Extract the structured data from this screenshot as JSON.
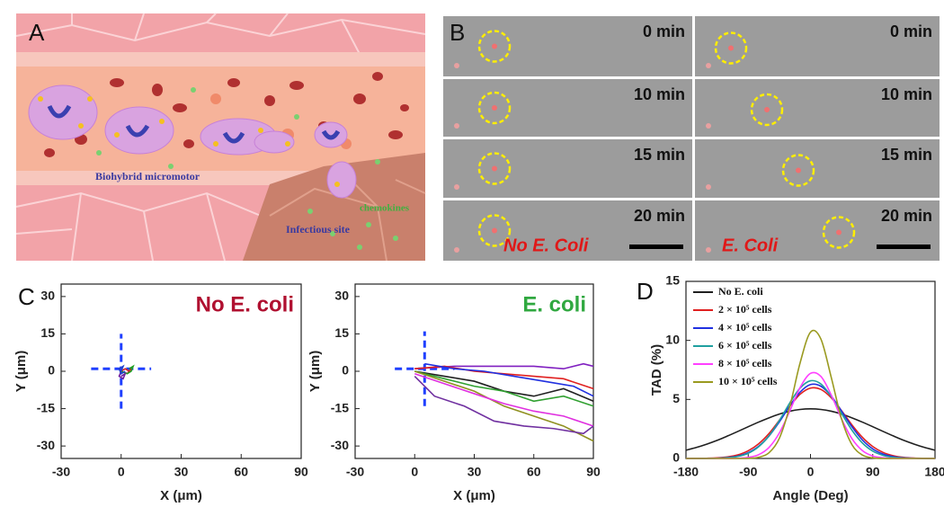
{
  "panel_labels": [
    "A",
    "B",
    "C",
    "D"
  ],
  "panel_a": {
    "labels": [
      "Biohybrid micromotor",
      "Infectious site",
      "chemokines"
    ]
  },
  "panel_b": {
    "times": [
      "0 min",
      "10 min",
      "15 min",
      "20 min"
    ],
    "conditions": [
      "No E. Coli",
      "E. Coli"
    ]
  },
  "chart_data": [
    {
      "type": "line",
      "title": "No E. coli",
      "title_color": "#b01030",
      "x_label": "X (μm)",
      "y_label": "Y (μm)",
      "xlim": [
        -30,
        90
      ],
      "xticks": [
        -30,
        0,
        30,
        60,
        90
      ],
      "ylim": [
        -35,
        35
      ],
      "yticks": [
        -30,
        -15,
        0,
        15,
        30
      ],
      "series": [
        {
          "color": "#2040ff",
          "dashed": true,
          "x": [
            -15,
            15
          ],
          "values": [
            1,
            1
          ]
        },
        {
          "color": "#2040ff",
          "dashed": true,
          "x": [
            0,
            0
          ],
          "values": [
            -15,
            15
          ]
        },
        {
          "color": "#d02020",
          "x": [
            0,
            2,
            4,
            5,
            3
          ],
          "values": [
            0,
            1,
            0,
            1,
            -1
          ]
        },
        {
          "color": "#20a020",
          "x": [
            0,
            3,
            5,
            6,
            4
          ],
          "values": [
            0,
            -1,
            0,
            2,
            1
          ]
        },
        {
          "color": "#7020a0",
          "x": [
            0,
            -1,
            1,
            2,
            0
          ],
          "values": [
            0,
            -2,
            -3,
            -1,
            -2
          ]
        },
        {
          "color": "#2040d0",
          "x": [
            0,
            1,
            -1,
            0,
            2
          ],
          "values": [
            0,
            2,
            1,
            -1,
            0
          ]
        }
      ]
    },
    {
      "type": "line",
      "title": "E. coli",
      "title_color": "#30a840",
      "x_label": "X (μm)",
      "y_label": "Y (μm)",
      "xlim": [
        -30,
        90
      ],
      "xticks": [
        -30,
        0,
        30,
        60,
        90
      ],
      "ylim": [
        -35,
        35
      ],
      "yticks": [
        -30,
        -15,
        0,
        15,
        30
      ],
      "series": [
        {
          "color": "#2040ff",
          "dashed": true,
          "x": [
            -10,
            20
          ],
          "values": [
            1,
            1
          ]
        },
        {
          "color": "#2040ff",
          "dashed": true,
          "x": [
            5,
            5
          ],
          "values": [
            -14,
            16
          ]
        },
        {
          "color": "#8020c0",
          "x": [
            0,
            20,
            40,
            60,
            75,
            85,
            90
          ],
          "values": [
            1,
            2,
            2,
            2,
            1,
            3,
            2
          ]
        },
        {
          "color": "#e02020",
          "x": [
            0,
            15,
            30,
            45,
            60,
            75,
            90
          ],
          "values": [
            1,
            2,
            0,
            -1,
            -2,
            -3,
            -7
          ]
        },
        {
          "color": "#2030e0",
          "x": [
            5,
            20,
            35,
            50,
            65,
            80,
            90
          ],
          "values": [
            3,
            1,
            0,
            -2,
            -4,
            -6,
            -10
          ]
        },
        {
          "color": "#202020",
          "x": [
            0,
            15,
            30,
            45,
            60,
            75,
            90
          ],
          "values": [
            0,
            -2,
            -4,
            -8,
            -10,
            -7,
            -12
          ]
        },
        {
          "color": "#30a030",
          "x": [
            0,
            15,
            30,
            45,
            60,
            75,
            90
          ],
          "values": [
            0,
            -3,
            -6,
            -8,
            -12,
            -10,
            -14
          ]
        },
        {
          "color": "#909020",
          "x": [
            0,
            15,
            30,
            45,
            60,
            75,
            90
          ],
          "values": [
            0,
            -4,
            -8,
            -14,
            -18,
            -22,
            -28
          ]
        },
        {
          "color": "#e030e0",
          "x": [
            0,
            15,
            30,
            45,
            60,
            75,
            90
          ],
          "values": [
            -1,
            -5,
            -9,
            -13,
            -16,
            -18,
            -22
          ]
        },
        {
          "color": "#7030a0",
          "x": [
            0,
            10,
            25,
            40,
            55,
            70,
            85,
            90
          ],
          "values": [
            -2,
            -10,
            -14,
            -20,
            -22,
            -23,
            -25,
            -22
          ]
        }
      ]
    },
    {
      "type": "line",
      "x_label": "Angle (Deg)",
      "y_label": "TAD (%)",
      "legend": "upper left",
      "xlim": [
        -180,
        180
      ],
      "xticks": [
        -180,
        -90,
        0,
        90,
        180
      ],
      "ylim": [
        0,
        15
      ],
      "yticks": [
        0,
        5,
        10,
        15
      ],
      "x": [
        -180,
        -165,
        -150,
        -135,
        -120,
        -105,
        -90,
        -75,
        -60,
        -45,
        -30,
        -15,
        0,
        15,
        30,
        45,
        60,
        75,
        90,
        105,
        120,
        135,
        150,
        165,
        180
      ],
      "series": [
        {
          "name": "No E. coli",
          "color": "#202020",
          "values": [
            0.7,
            0.93,
            1.21,
            1.53,
            1.9,
            2.29,
            2.69,
            3.08,
            3.44,
            3.76,
            4.0,
            4.15,
            4.2,
            4.15,
            4.0,
            3.76,
            3.44,
            3.08,
            2.69,
            2.29,
            1.9,
            1.53,
            1.21,
            0.93,
            0.7
          ]
        },
        {
          "name": "2 × 10⁵ cells",
          "color": "#e02020",
          "values": [
            0,
            0.01,
            0.02,
            0.05,
            0.13,
            0.3,
            0.65,
            1.24,
            2.11,
            3.24,
            4.42,
            5.44,
            5.96,
            5.85,
            5.14,
            4.04,
            2.84,
            1.79,
            1.01,
            0.51,
            0.23,
            0.09,
            0.03,
            0.01,
            0
          ]
        },
        {
          "name": "4 × 10⁵ cells",
          "color": "#2030e0",
          "values": [
            0,
            0,
            0.01,
            0.02,
            0.08,
            0.2,
            0.49,
            1.03,
            1.9,
            3.1,
            4.45,
            5.62,
            6.26,
            6.12,
            5.28,
            4.0,
            2.68,
            1.57,
            0.81,
            0.37,
            0.15,
            0.05,
            0.02,
            0,
            0
          ]
        },
        {
          "name": "6 × 10⁵ cells",
          "color": "#20a0a0",
          "values": [
            0,
            0,
            0,
            0.02,
            0.06,
            0.17,
            0.44,
            0.99,
            1.91,
            3.21,
            4.7,
            5.96,
            6.58,
            6.31,
            5.25,
            3.8,
            2.39,
            1.31,
            0.62,
            0.26,
            0.09,
            0.03,
            0.01,
            0,
            0
          ]
        },
        {
          "name": "8 × 10⁵ cells",
          "color": "#ff40ff",
          "values": [
            0,
            0,
            0,
            0,
            0,
            0.02,
            0.09,
            0.32,
            0.93,
            2.16,
            4.01,
            6.01,
            7.21,
            6.95,
            5.38,
            3.34,
            1.67,
            0.67,
            0.21,
            0.06,
            0.01,
            0,
            0,
            0,
            0
          ]
        },
        {
          "name": "10 × 10⁵ cells",
          "color": "#9a9a20",
          "values": [
            0,
            0,
            0,
            0,
            0,
            0,
            0.01,
            0.1,
            0.48,
            1.71,
            4.39,
            8.1,
            10.7,
            10.12,
            6.87,
            3.33,
            1.16,
            0.29,
            0.05,
            0,
            0,
            0,
            0,
            0,
            0
          ]
        }
      ]
    }
  ]
}
